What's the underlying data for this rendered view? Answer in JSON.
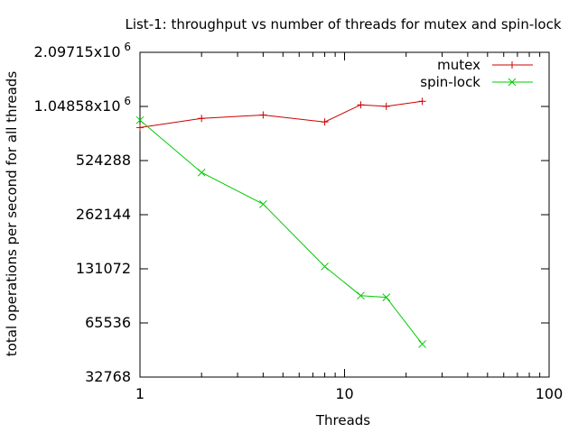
{
  "chart_data": {
    "type": "line",
    "title": "List-1: throughput vs number of threads for mutex and spin-lock",
    "xlabel": "Threads",
    "ylabel": "total operations per second for all threads",
    "x_scale": "log10",
    "y_scale": "log2",
    "xlim": [
      1,
      100
    ],
    "ylim": [
      32768,
      2097152
    ],
    "x_ticks": [
      {
        "value": 1,
        "label": "1"
      },
      {
        "value": 10,
        "label": "10"
      },
      {
        "value": 100,
        "label": "100"
      }
    ],
    "y_ticks": [
      {
        "value": 32768,
        "label": "32768"
      },
      {
        "value": 65536,
        "label": "65536"
      },
      {
        "value": 131072,
        "label": "131072"
      },
      {
        "value": 262144,
        "label": "262144"
      },
      {
        "value": 524288,
        "label": "524288"
      },
      {
        "value": 1048576,
        "label": "1.04858x10",
        "exp": "6"
      },
      {
        "value": 2097152,
        "label": "2.09715x10",
        "exp": "6"
      }
    ],
    "grid": false,
    "legend_position": "top-right",
    "series": [
      {
        "name": "mutex",
        "color": "#cc0000",
        "marker": "plus",
        "x": [
          1,
          2,
          4,
          8,
          12,
          16,
          24
        ],
        "y": [
          800000,
          900000,
          940000,
          860000,
          1070000,
          1050000,
          1120000
        ]
      },
      {
        "name": "spin-lock",
        "color": "#00cc00",
        "marker": "cross",
        "x": [
          1,
          2,
          4,
          8,
          12,
          16,
          24
        ],
        "y": [
          880000,
          450000,
          300000,
          135000,
          93000,
          91000,
          50000
        ]
      }
    ]
  }
}
